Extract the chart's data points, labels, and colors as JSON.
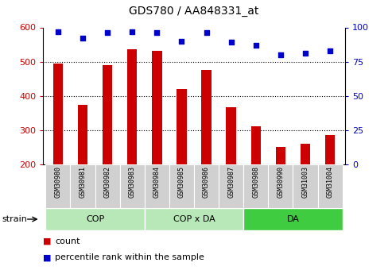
{
  "title": "GDS780 / AA848331_at",
  "samples": [
    "GSM30980",
    "GSM30981",
    "GSM30982",
    "GSM30983",
    "GSM30984",
    "GSM30985",
    "GSM30986",
    "GSM30987",
    "GSM30988",
    "GSM30990",
    "GSM31003",
    "GSM31004"
  ],
  "counts": [
    495,
    375,
    490,
    537,
    532,
    420,
    477,
    368,
    312,
    252,
    260,
    285
  ],
  "percentiles": [
    97,
    92,
    96,
    97,
    96,
    90,
    96,
    89,
    87,
    80,
    81,
    83
  ],
  "group_configs": [
    {
      "label": "COP",
      "start": 0,
      "end": 4,
      "color": "#b8e8b8"
    },
    {
      "label": "COP x DA",
      "start": 4,
      "end": 8,
      "color": "#b8e8b8"
    },
    {
      "label": "DA",
      "start": 8,
      "end": 12,
      "color": "#40cc40"
    }
  ],
  "ylim_left": [
    200,
    600
  ],
  "ylim_right": [
    0,
    100
  ],
  "yticks_left": [
    200,
    300,
    400,
    500,
    600
  ],
  "yticks_right": [
    0,
    25,
    50,
    75,
    100
  ],
  "bar_color": "#cc0000",
  "dot_color": "#0000cc",
  "bar_bottom": 200,
  "grid_values": [
    300,
    400,
    500
  ],
  "tick_label_color_left": "#cc0000",
  "tick_label_color_right": "#0000cc",
  "legend_count_color": "#cc0000",
  "legend_pct_color": "#0000cc",
  "sample_box_color": "#d0d0d0",
  "bar_width": 0.4
}
